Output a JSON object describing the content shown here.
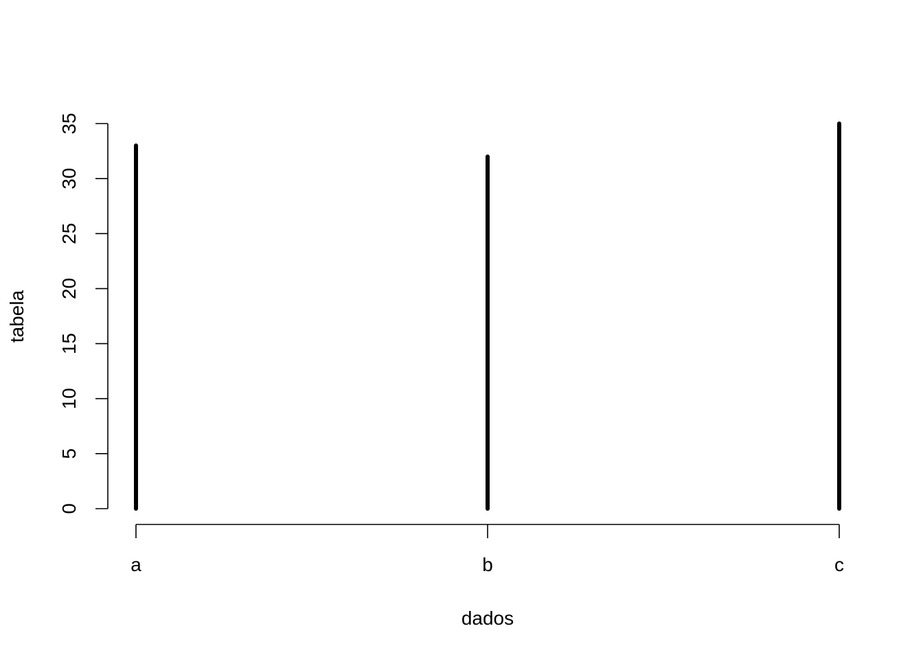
{
  "chart_data": {
    "type": "bar",
    "categories": [
      "a",
      "b",
      "c"
    ],
    "values": [
      33,
      32,
      35
    ],
    "xlabel": "dados",
    "ylabel": "tabela",
    "ylim": [
      0,
      35
    ],
    "yticks": [
      "0",
      "5",
      "10",
      "15",
      "20",
      "25",
      "30",
      "35"
    ],
    "grid": false,
    "colors": {
      "bars": "#000000",
      "axes": "#000000",
      "background": "#ffffff"
    }
  }
}
